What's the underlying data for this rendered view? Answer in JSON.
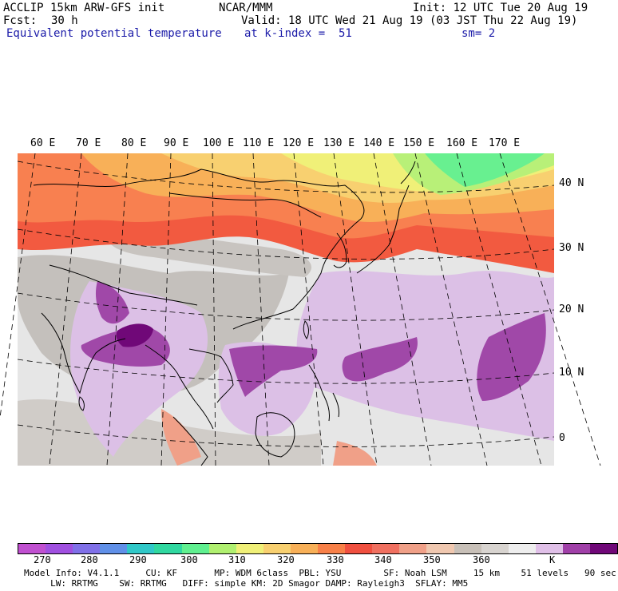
{
  "header": {
    "model_line": "ACCLIP 15km ARW-GFS init",
    "org": "NCAR/MMM",
    "init": "Init: 12 UTC Tue 20 Aug 19",
    "fcst_label": "Fcst:",
    "fcst_value": "30 h",
    "valid": "Valid: 18 UTC Wed 21 Aug 19 (03 JST Thu 22 Aug 19)",
    "field": "Equivalent potential temperature",
    "level": "at k-index =  51",
    "smoothing": "sm= 2"
  },
  "map": {
    "lon_labels": [
      "60 E",
      "70 E",
      "80 E",
      "90 E",
      "100 E",
      "110 E",
      "120 E",
      "130 E",
      "140 E",
      "150 E",
      "160 E",
      "170 E"
    ],
    "lat_labels": [
      "40 N",
      "30 N",
      "20 N",
      "10 N",
      "0"
    ]
  },
  "colorbar": {
    "colors": [
      "#c050d0",
      "#a050e0",
      "#8070e8",
      "#6090e8",
      "#30c8c8",
      "#30d8a0",
      "#60f090",
      "#b0f070",
      "#f0f078",
      "#f8d070",
      "#f8b058",
      "#f88048",
      "#f05040",
      "#f07060",
      "#f0a088",
      "#f0c8b0",
      "#c8c0b8",
      "#d8d4d0",
      "#eeeeee",
      "#e0c0e8",
      "#a040a8",
      "#700878"
    ],
    "labels": [
      "270",
      "280",
      "290",
      "300",
      "310",
      "320",
      "330",
      "340",
      "350",
      "360"
    ],
    "unit": "K"
  },
  "footer": {
    "line1": "Model Info: V4.1.1     CU: KF       MP: WDM 6class  PBL: YSU        SF: Noah LSM     15 km    51 levels   90 sec",
    "line2": "     LW: RRTMG    SW: RRTMG   DIFF: simple KM: 2D Smagor DAMP: Rayleigh3  SFLAY: MM5"
  }
}
